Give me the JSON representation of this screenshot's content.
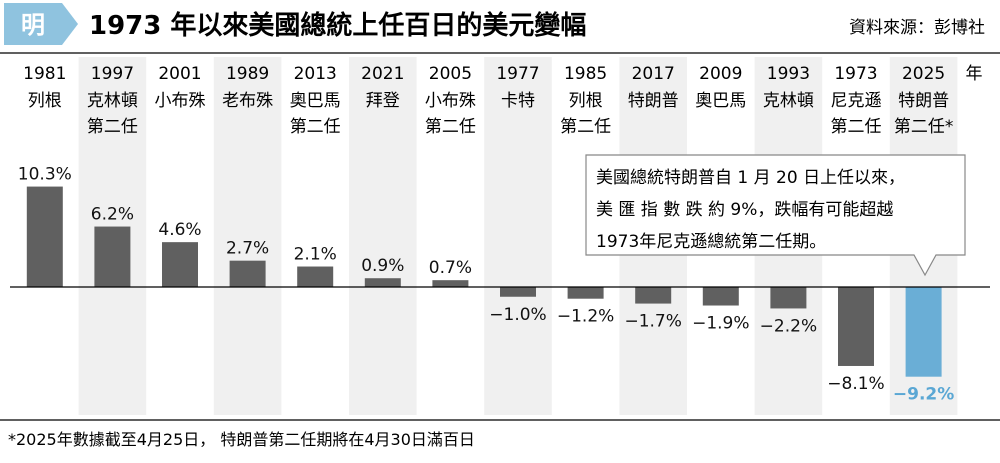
{
  "header": {
    "logo_char": "明",
    "title": "1973 年以來美國總統上任百日的美元變幅",
    "source": "資料來源：彭博社"
  },
  "year_unit": "年",
  "colors": {
    "bar": "#606060",
    "highlight_bar": "#6aaed6",
    "highlight_text": "#5aa7d4",
    "column_shade": "#f0f0f0",
    "logo": "#8fc3df",
    "rule": "#000000"
  },
  "chart_data": {
    "type": "bar",
    "title": "1973 年以來美國總統上任百日的美元變幅",
    "unit": "%",
    "highlight_index": 13,
    "categories": [
      {
        "year": "1981",
        "name": [
          "列根"
        ]
      },
      {
        "year": "1997",
        "name": [
          "克林頓",
          "第二任"
        ]
      },
      {
        "year": "2001",
        "name": [
          "小布殊"
        ]
      },
      {
        "year": "1989",
        "name": [
          "老布殊"
        ]
      },
      {
        "year": "2013",
        "name": [
          "奧巴馬",
          "第二任"
        ]
      },
      {
        "year": "2021",
        "name": [
          "拜登"
        ]
      },
      {
        "year": "2005",
        "name": [
          "小布殊",
          "第二任"
        ]
      },
      {
        "year": "1977",
        "name": [
          "卡特"
        ]
      },
      {
        "year": "1985",
        "name": [
          "列根",
          "第二任"
        ]
      },
      {
        "year": "2017",
        "name": [
          "特朗普"
        ]
      },
      {
        "year": "2009",
        "name": [
          "奧巴馬"
        ]
      },
      {
        "year": "1993",
        "name": [
          "克林頓"
        ]
      },
      {
        "year": "1973",
        "name": [
          "尼克遜",
          "第二任"
        ]
      },
      {
        "year": "2025",
        "name": [
          "特朗普",
          "第二任*"
        ]
      }
    ],
    "values": [
      10.3,
      6.2,
      4.6,
      2.7,
      2.1,
      0.9,
      0.7,
      -1.0,
      -1.2,
      -1.7,
      -1.9,
      -2.2,
      -8.1,
      -9.2
    ],
    "labels": [
      "10.3%",
      "6.2%",
      "4.6%",
      "2.7%",
      "2.1%",
      "0.9%",
      "0.7%",
      "−1.0%",
      "−1.2%",
      "−1.7%",
      "−1.9%",
      "−2.2%",
      "−8.1%",
      "−9.2%"
    ],
    "annotation": [
      "美國總統特朗普自 1 月 20 日上任以來，",
      "美 匯 指 數 跌 約 9%，跌幅有可能超越",
      "1973年尼克遜總統第二任期。"
    ]
  },
  "footnote": "*2025年數據截至4月25日， 特朗普第二任期將在4月30日滿百日"
}
